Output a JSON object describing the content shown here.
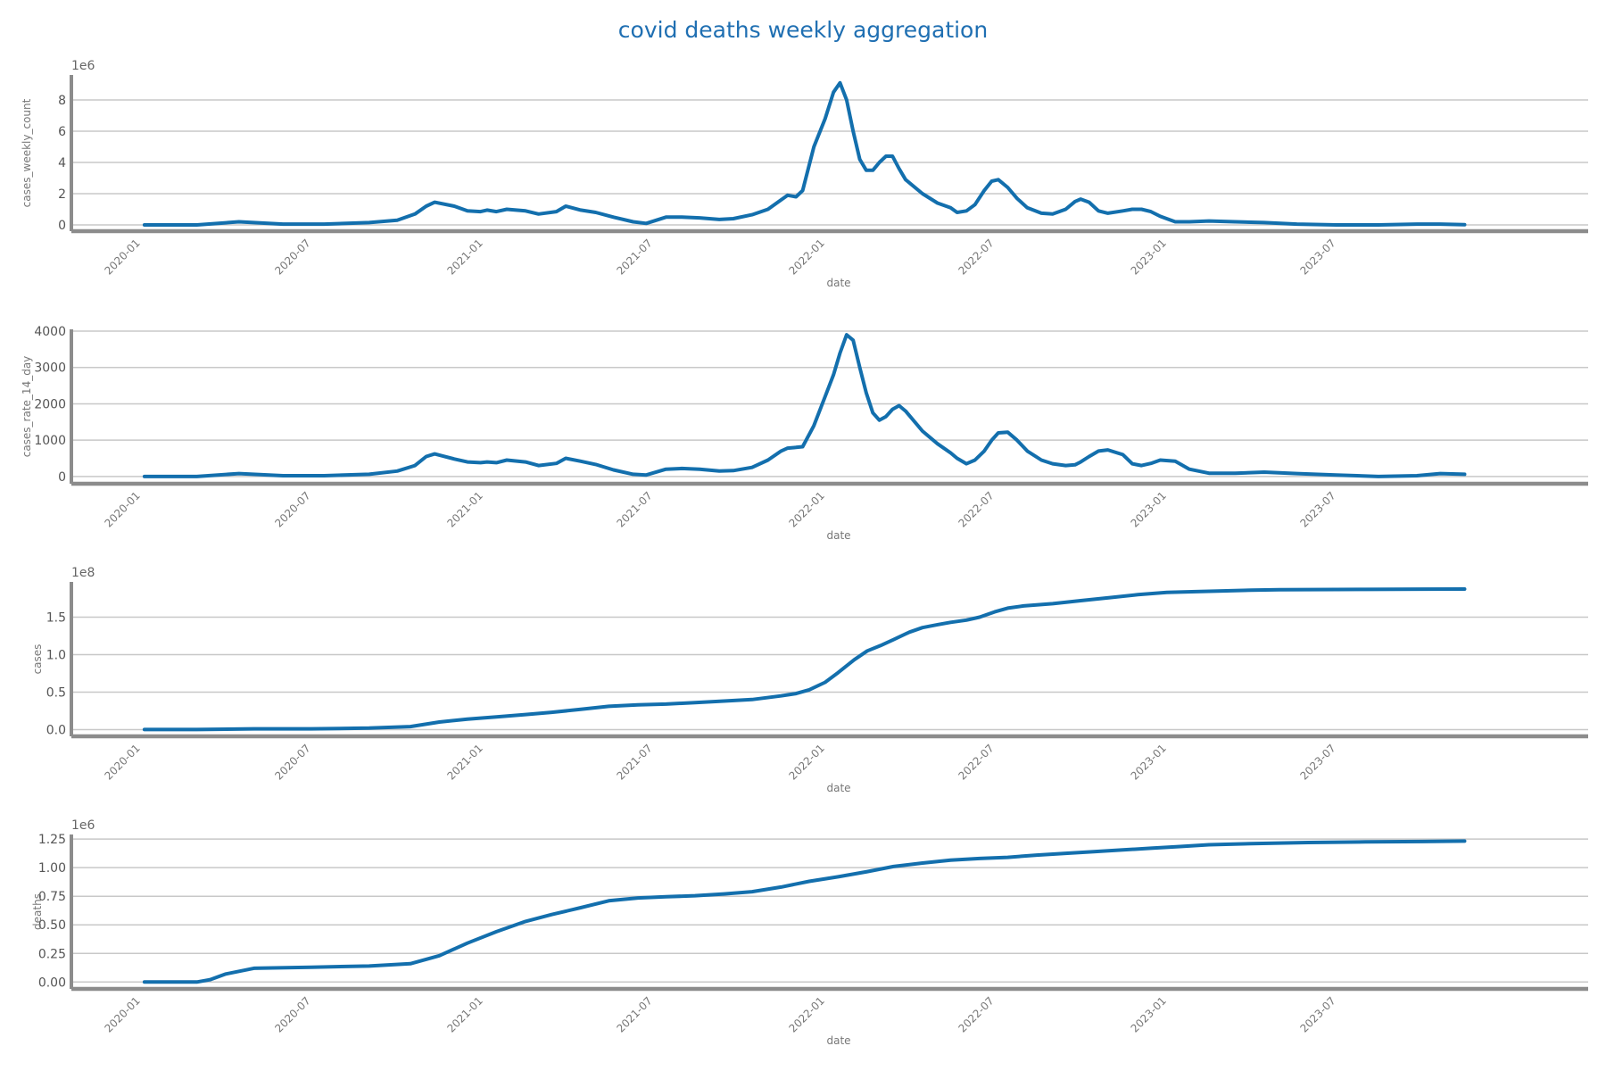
{
  "title": "covid deaths weekly aggregation",
  "colors": {
    "line": "#136fad",
    "grid": "#c8c8c8",
    "axis": "#8c8c8c",
    "title": "#1f6fb2"
  },
  "chart_data": [
    {
      "type": "line",
      "title": "covid deaths weekly aggregation",
      "xlabel": "date",
      "ylabel": "cases_weekly_count",
      "offset_text": "1e6",
      "x_ticks": [
        "2020-01",
        "2020-07",
        "2021-01",
        "2021-07",
        "2022-01",
        "2022-07",
        "2023-01",
        "2023-07"
      ],
      "y_ticks": [
        "0",
        "2",
        "4",
        "6",
        "8"
      ],
      "ylim": [
        -0.4,
        9.6
      ],
      "xlim": [
        "2019-10-19",
        "2024-03-26"
      ],
      "grid": true,
      "series": [
        {
          "x": [
            "2020-01-05",
            "2020-03-01",
            "2020-04-15",
            "2020-06-01",
            "2020-07-15",
            "2020-09-01",
            "2020-10-01",
            "2020-10-20",
            "2020-11-01",
            "2020-11-10",
            "2020-12-01",
            "2020-12-15",
            "2020-12-29",
            "2021-01-05",
            "2021-01-15",
            "2021-01-26",
            "2021-02-15",
            "2021-03-01",
            "2021-03-20",
            "2021-03-30",
            "2021-04-15",
            "2021-05-01",
            "2021-05-20",
            "2021-06-10",
            "2021-06-24",
            "2021-07-15",
            "2021-08-01",
            "2021-08-20",
            "2021-09-10",
            "2021-09-25",
            "2021-10-15",
            "2021-11-01",
            "2021-11-15",
            "2021-11-22",
            "2021-12-01",
            "2021-12-08",
            "2021-12-20",
            "2022-01-01",
            "2022-01-10",
            "2022-01-17",
            "2022-01-24",
            "2022-01-31",
            "2022-02-07",
            "2022-02-14",
            "2022-02-21",
            "2022-02-28",
            "2022-03-07",
            "2022-03-14",
            "2022-03-21",
            "2022-03-28",
            "2022-04-15",
            "2022-05-01",
            "2022-05-15",
            "2022-05-22",
            "2022-06-01",
            "2022-06-10",
            "2022-06-20",
            "2022-06-28",
            "2022-07-05",
            "2022-07-15",
            "2022-07-25",
            "2022-08-05",
            "2022-08-20",
            "2022-09-01",
            "2022-09-15",
            "2022-09-25",
            "2022-10-01",
            "2022-10-10",
            "2022-10-20",
            "2022-10-30",
            "2022-11-15",
            "2022-11-25",
            "2022-12-05",
            "2022-12-15",
            "2022-12-25",
            "2023-01-10",
            "2023-01-25",
            "2023-02-15",
            "2023-03-15",
            "2023-04-15",
            "2023-05-20",
            "2023-07-01",
            "2023-08-15",
            "2023-09-25",
            "2023-10-20",
            "2023-11-15"
          ],
          "y": [
            0,
            0,
            0.2,
            0.05,
            0.05,
            0.15,
            0.3,
            0.7,
            1.2,
            1.45,
            1.2,
            0.9,
            0.85,
            0.95,
            0.85,
            1.0,
            0.9,
            0.7,
            0.85,
            1.2,
            0.95,
            0.8,
            0.5,
            0.2,
            0.1,
            0.5,
            0.5,
            0.45,
            0.35,
            0.4,
            0.65,
            1.0,
            1.6,
            1.9,
            1.8,
            2.2,
            5.0,
            6.8,
            8.5,
            9.1,
            8.0,
            6.0,
            4.2,
            3.5,
            3.5,
            4.0,
            4.4,
            4.4,
            3.6,
            2.9,
            2.0,
            1.4,
            1.1,
            0.8,
            0.9,
            1.3,
            2.2,
            2.8,
            2.9,
            2.4,
            1.7,
            1.1,
            0.75,
            0.7,
            1.0,
            1.5,
            1.65,
            1.45,
            0.9,
            0.75,
            0.9,
            1.0,
            1.0,
            0.85,
            0.55,
            0.2,
            0.2,
            0.25,
            0.2,
            0.15,
            0.05,
            0,
            0,
            0.05,
            0.05,
            0.02
          ]
        }
      ]
    },
    {
      "type": "line",
      "xlabel": "date",
      "ylabel": "cases_rate_14_day",
      "offset_text": "",
      "x_ticks": [
        "2020-01",
        "2020-07",
        "2021-01",
        "2021-07",
        "2022-01",
        "2022-07",
        "2023-01",
        "2023-07"
      ],
      "y_ticks": [
        "0",
        "1000",
        "2000",
        "3000",
        "4000"
      ],
      "ylim": [
        -200,
        4050
      ],
      "xlim": [
        "2019-10-19",
        "2024-03-26"
      ],
      "grid": true,
      "series": [
        {
          "x": [
            "2020-01-05",
            "2020-03-01",
            "2020-04-15",
            "2020-06-01",
            "2020-07-15",
            "2020-09-01",
            "2020-10-01",
            "2020-10-20",
            "2020-11-01",
            "2020-11-10",
            "2020-12-01",
            "2020-12-15",
            "2020-12-29",
            "2021-01-05",
            "2021-01-15",
            "2021-01-26",
            "2021-02-15",
            "2021-03-01",
            "2021-03-20",
            "2021-03-30",
            "2021-04-15",
            "2021-05-01",
            "2021-05-20",
            "2021-06-10",
            "2021-06-24",
            "2021-07-15",
            "2021-08-01",
            "2021-08-20",
            "2021-09-10",
            "2021-09-25",
            "2021-10-15",
            "2021-11-01",
            "2021-11-15",
            "2021-11-22",
            "2021-12-01",
            "2021-12-08",
            "2021-12-20",
            "2022-01-01",
            "2022-01-10",
            "2022-01-17",
            "2022-01-24",
            "2022-01-31",
            "2022-02-07",
            "2022-02-14",
            "2022-02-21",
            "2022-02-28",
            "2022-03-07",
            "2022-03-14",
            "2022-03-21",
            "2022-03-28",
            "2022-04-15",
            "2022-05-01",
            "2022-05-15",
            "2022-05-22",
            "2022-06-01",
            "2022-06-10",
            "2022-06-20",
            "2022-06-28",
            "2022-07-05",
            "2022-07-15",
            "2022-07-25",
            "2022-08-05",
            "2022-08-20",
            "2022-09-01",
            "2022-09-15",
            "2022-09-25",
            "2022-10-01",
            "2022-10-10",
            "2022-10-20",
            "2022-10-30",
            "2022-11-15",
            "2022-11-25",
            "2022-12-05",
            "2022-12-15",
            "2022-12-25",
            "2023-01-10",
            "2023-01-25",
            "2023-02-15",
            "2023-03-15",
            "2023-04-15",
            "2023-05-20",
            "2023-07-01",
            "2023-08-15",
            "2023-09-25",
            "2023-10-20",
            "2023-11-15"
          ],
          "y": [
            0,
            0,
            80,
            20,
            20,
            60,
            150,
            300,
            550,
            620,
            480,
            400,
            380,
            400,
            380,
            450,
            400,
            300,
            360,
            500,
            420,
            330,
            180,
            60,
            40,
            200,
            220,
            200,
            150,
            160,
            250,
            450,
            700,
            780,
            800,
            820,
            1400,
            2200,
            2800,
            3400,
            3900,
            3750,
            3000,
            2300,
            1750,
            1550,
            1650,
            1850,
            1950,
            1800,
            1250,
            900,
            650,
            500,
            350,
            450,
            700,
            1000,
            1200,
            1220,
            1000,
            700,
            450,
            350,
            300,
            320,
            400,
            550,
            700,
            730,
            600,
            350,
            300,
            360,
            450,
            420,
            200,
            90,
            90,
            120,
            80,
            40,
            0,
            20,
            80,
            60
          ]
        }
      ]
    },
    {
      "type": "line",
      "xlabel": "date",
      "ylabel": "cases",
      "offset_text": "1e8",
      "x_ticks": [
        "2020-01",
        "2020-07",
        "2021-01",
        "2021-07",
        "2022-01",
        "2022-07",
        "2023-01",
        "2023-07"
      ],
      "y_ticks": [
        "0.0",
        "0.5",
        "1.0",
        "1.5"
      ],
      "ylim": [
        -0.09,
        1.97
      ],
      "xlim": [
        "2019-10-19",
        "2024-03-26"
      ],
      "grid": true,
      "series": [
        {
          "x": [
            "2020-01-05",
            "2020-03-01",
            "2020-05-01",
            "2020-07-01",
            "2020-09-01",
            "2020-10-15",
            "2020-11-15",
            "2020-12-15",
            "2021-01-15",
            "2021-02-15",
            "2021-03-15",
            "2021-04-15",
            "2021-05-15",
            "2021-06-15",
            "2021-07-15",
            "2021-08-15",
            "2021-09-15",
            "2021-10-15",
            "2021-11-15",
            "2021-12-01",
            "2021-12-15",
            "2022-01-01",
            "2022-01-15",
            "2022-02-01",
            "2022-02-15",
            "2022-03-01",
            "2022-03-15",
            "2022-04-01",
            "2022-04-15",
            "2022-05-01",
            "2022-05-15",
            "2022-06-01",
            "2022-06-15",
            "2022-07-01",
            "2022-07-15",
            "2022-08-01",
            "2022-09-01",
            "2022-10-01",
            "2022-11-01",
            "2022-12-01",
            "2023-01-01",
            "2023-02-01",
            "2023-03-01",
            "2023-04-01",
            "2023-05-01",
            "2023-06-01",
            "2023-07-01",
            "2023-08-01",
            "2023-09-01",
            "2023-10-01",
            "2023-11-15"
          ],
          "y": [
            0,
            0,
            0.01,
            0.01,
            0.02,
            0.04,
            0.1,
            0.14,
            0.17,
            0.2,
            0.23,
            0.27,
            0.31,
            0.33,
            0.34,
            0.36,
            0.38,
            0.4,
            0.45,
            0.48,
            0.53,
            0.63,
            0.76,
            0.93,
            1.05,
            1.12,
            1.2,
            1.3,
            1.36,
            1.4,
            1.43,
            1.46,
            1.5,
            1.57,
            1.62,
            1.65,
            1.68,
            1.72,
            1.76,
            1.8,
            1.83,
            1.84,
            1.85,
            1.86,
            1.865,
            1.868,
            1.869,
            1.87,
            1.872,
            1.873,
            1.875
          ]
        }
      ]
    },
    {
      "type": "line",
      "xlabel": "date",
      "ylabel": "deaths",
      "offset_text": "1e6",
      "x_ticks": [
        "2020-01",
        "2020-07",
        "2021-01",
        "2021-07",
        "2022-01",
        "2022-07",
        "2023-01",
        "2023-07"
      ],
      "y_ticks": [
        "0.00",
        "0.25",
        "0.50",
        "0.75",
        "1.00",
        "1.25"
      ],
      "ylim": [
        -0.06,
        1.29
      ],
      "xlim": [
        "2019-10-19",
        "2024-03-26"
      ],
      "grid": true,
      "series": [
        {
          "x": [
            "2020-01-05",
            "2020-03-01",
            "2020-03-15",
            "2020-04-01",
            "2020-05-01",
            "2020-07-01",
            "2020-09-01",
            "2020-10-15",
            "2020-11-15",
            "2020-12-15",
            "2021-01-15",
            "2021-02-15",
            "2021-03-15",
            "2021-04-15",
            "2021-05-15",
            "2021-06-15",
            "2021-07-15",
            "2021-08-15",
            "2021-09-15",
            "2021-10-15",
            "2021-11-15",
            "2021-12-15",
            "2022-01-15",
            "2022-02-15",
            "2022-03-15",
            "2022-04-15",
            "2022-05-15",
            "2022-06-15",
            "2022-07-15",
            "2022-08-15",
            "2022-09-15",
            "2022-10-15",
            "2022-11-15",
            "2022-12-15",
            "2023-01-15",
            "2023-02-15",
            "2023-04-01",
            "2023-06-01",
            "2023-08-01",
            "2023-10-01",
            "2023-11-15"
          ],
          "y": [
            0,
            0,
            0.02,
            0.07,
            0.12,
            0.13,
            0.14,
            0.16,
            0.23,
            0.34,
            0.44,
            0.53,
            0.59,
            0.65,
            0.71,
            0.735,
            0.745,
            0.755,
            0.77,
            0.79,
            0.83,
            0.88,
            0.92,
            0.965,
            1.01,
            1.04,
            1.065,
            1.08,
            1.09,
            1.11,
            1.125,
            1.14,
            1.155,
            1.17,
            1.185,
            1.2,
            1.21,
            1.22,
            1.225,
            1.228,
            1.232
          ]
        }
      ]
    }
  ]
}
